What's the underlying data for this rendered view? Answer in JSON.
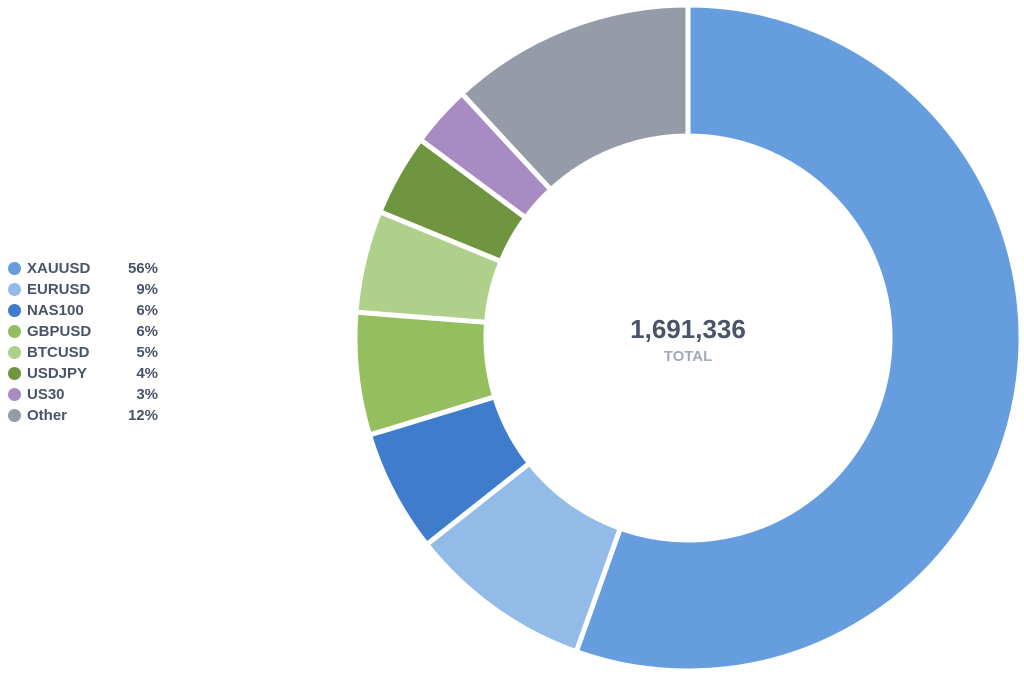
{
  "chart_data": {
    "type": "pie",
    "donut": true,
    "center_value": "1,691,336",
    "center_label": "TOTAL",
    "legend_position": "left",
    "slices": [
      {
        "label": "XAUUSD",
        "value": 56,
        "display": "56%",
        "color": "#669ddf"
      },
      {
        "label": "EURUSD",
        "value": 9,
        "display": "9%",
        "color": "#93bbe8"
      },
      {
        "label": "NAS100",
        "value": 6,
        "display": "6%",
        "color": "#3f7ccc"
      },
      {
        "label": "GBPUSD",
        "value": 6,
        "display": "6%",
        "color": "#95bf5f"
      },
      {
        "label": "BTCUSD",
        "value": 5,
        "display": "5%",
        "color": "#afd08a"
      },
      {
        "label": "USDJPY",
        "value": 4,
        "display": "4%",
        "color": "#6f9540"
      },
      {
        "label": "US30",
        "value": 3,
        "display": "3%",
        "color": "#a88bc3"
      },
      {
        "label": "Other",
        "value": 12,
        "display": "12%",
        "color": "#969ba8"
      }
    ]
  }
}
